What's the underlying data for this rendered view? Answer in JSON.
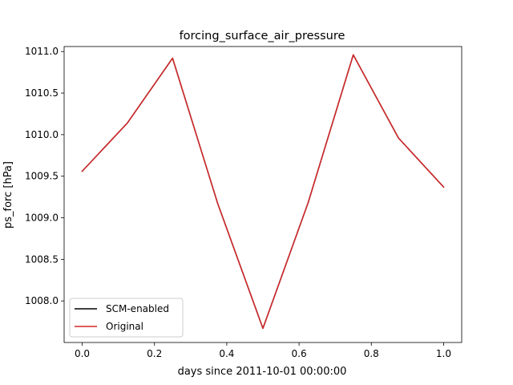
{
  "chart_data": {
    "type": "line",
    "title": "forcing_surface_air_pressure",
    "xlabel": "days since 2011-10-01 00:00:00",
    "ylabel": "ps_forc [hPa]",
    "xlim": [
      -0.05,
      1.05
    ],
    "ylim": [
      1007.5,
      1011.06
    ],
    "xticks": [
      0.0,
      0.2,
      0.4,
      0.6,
      0.8,
      1.0
    ],
    "xtick_labels": [
      "0.0",
      "0.2",
      "0.4",
      "0.6",
      "0.8",
      "1.0"
    ],
    "yticks": [
      1008.0,
      1008.5,
      1009.0,
      1009.5,
      1010.0,
      1010.5,
      1011.0
    ],
    "ytick_labels": [
      "1008.0",
      "1008.5",
      "1009.0",
      "1009.5",
      "1010.0",
      "1010.5",
      "1011.0"
    ],
    "grid": false,
    "legend_position": "lower-left",
    "x": [
      0.0,
      0.125,
      0.25,
      0.375,
      0.5,
      0.625,
      0.75,
      0.875,
      1.0
    ],
    "series": [
      {
        "name": "SCM-enabled",
        "color": "#000000",
        "values": [
          1009.56,
          1010.14,
          1010.92,
          1009.17,
          1007.67,
          1009.18,
          1010.96,
          1009.96,
          1009.37
        ]
      },
      {
        "name": "Original",
        "color": "#d62728",
        "values": [
          1009.56,
          1010.14,
          1010.92,
          1009.17,
          1007.67,
          1009.18,
          1010.96,
          1009.96,
          1009.37
        ]
      }
    ]
  }
}
